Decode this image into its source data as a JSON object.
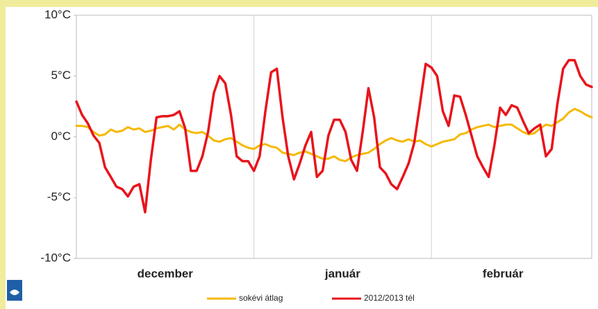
{
  "chart_data": {
    "type": "line",
    "x": [
      0,
      1,
      2,
      3,
      4,
      5,
      6,
      7,
      8,
      9,
      10,
      11,
      12,
      13,
      14,
      15,
      16,
      17,
      18,
      19,
      20,
      21,
      22,
      23,
      24,
      25,
      26,
      27,
      28,
      29,
      30,
      31,
      32,
      33,
      34,
      35,
      36,
      37,
      38,
      39,
      40,
      41,
      42,
      43,
      44,
      45,
      46,
      47,
      48,
      49,
      50,
      51,
      52,
      53,
      54,
      55,
      56,
      57,
      58,
      59,
      60,
      61,
      62,
      63,
      64,
      65,
      66,
      67,
      68,
      69,
      70,
      71,
      72,
      73,
      74,
      75,
      76,
      77,
      78,
      79,
      80,
      81,
      82,
      83,
      84,
      85,
      86,
      87,
      88,
      89,
      90
    ],
    "xlim": [
      0,
      90
    ],
    "xticks": [
      {
        "value": 15.5,
        "label": "december"
      },
      {
        "value": 46.5,
        "label": "január"
      },
      {
        "value": 74.5,
        "label": "február"
      }
    ],
    "x_grid_lines": [
      31,
      62
    ],
    "ylim": [
      -10,
      10
    ],
    "yticks": [
      {
        "value": 10,
        "label": "10°C"
      },
      {
        "value": 5,
        "label": "5°C"
      },
      {
        "value": 0,
        "label": "0°C"
      },
      {
        "value": -5,
        "label": "-5°C"
      },
      {
        "value": -10,
        "label": "-10°C"
      }
    ],
    "grid": "x",
    "legend": "bottom",
    "series": [
      {
        "name": "sokévi átlag",
        "color": "#f5b800",
        "values": [
          0.9,
          0.9,
          0.8,
          0.4,
          0.1,
          0.2,
          0.6,
          0.4,
          0.5,
          0.8,
          0.6,
          0.7,
          0.4,
          0.5,
          0.7,
          0.8,
          0.9,
          0.6,
          1.0,
          0.6,
          0.4,
          0.3,
          0.4,
          0.1,
          -0.3,
          -0.4,
          -0.2,
          -0.1,
          -0.4,
          -0.7,
          -0.9,
          -1.0,
          -0.7,
          -0.6,
          -0.8,
          -0.9,
          -1.3,
          -1.4,
          -1.5,
          -1.3,
          -1.2,
          -1.4,
          -1.6,
          -1.8,
          -1.8,
          -1.6,
          -1.9,
          -2.0,
          -1.7,
          -1.5,
          -1.4,
          -1.3,
          -1.0,
          -0.6,
          -0.3,
          -0.1,
          -0.3,
          -0.4,
          -0.2,
          -0.4,
          -0.3,
          -0.6,
          -0.8,
          -0.6,
          -0.4,
          -0.3,
          -0.2,
          0.2,
          0.3,
          0.6,
          0.8,
          0.9,
          1.0,
          0.8,
          0.9,
          1.0,
          1.0,
          0.7,
          0.4,
          0.2,
          0.3,
          0.7,
          1.0,
          0.9,
          1.2,
          1.5,
          2.0,
          2.3,
          2.1,
          1.8,
          1.6
        ]
      },
      {
        "name": "2012/2013 tél",
        "color": "#e8141c",
        "values": [
          2.9,
          1.8,
          1.1,
          0.1,
          -0.5,
          -2.5,
          -3.3,
          -4.1,
          -4.3,
          -4.9,
          -4.1,
          -3.9,
          -6.2,
          -1.9,
          1.6,
          1.7,
          1.7,
          1.8,
          2.1,
          0.7,
          -2.8,
          -2.8,
          -1.6,
          0.4,
          3.6,
          5.0,
          4.4,
          1.8,
          -1.6,
          -2.0,
          -2.0,
          -2.8,
          -1.6,
          2.1,
          5.3,
          5.6,
          1.6,
          -1.6,
          -3.5,
          -2.2,
          -0.7,
          0.4,
          -3.3,
          -2.8,
          0.1,
          1.4,
          1.4,
          0.4,
          -1.9,
          -2.8,
          0.4,
          4.0,
          1.6,
          -2.5,
          -3.0,
          -3.9,
          -4.3,
          -3.3,
          -2.2,
          -0.5,
          2.7,
          6.0,
          5.7,
          5.0,
          2.1,
          0.9,
          3.4,
          3.3,
          1.8,
          0.1,
          -1.6,
          -2.5,
          -3.3,
          -0.7,
          2.4,
          1.8,
          2.6,
          2.4,
          1.3,
          0.3,
          0.7,
          1.0,
          -1.6,
          -1.0,
          2.7,
          5.6,
          6.3,
          6.3,
          5.0,
          4.3,
          4.1
        ]
      }
    ]
  }
}
